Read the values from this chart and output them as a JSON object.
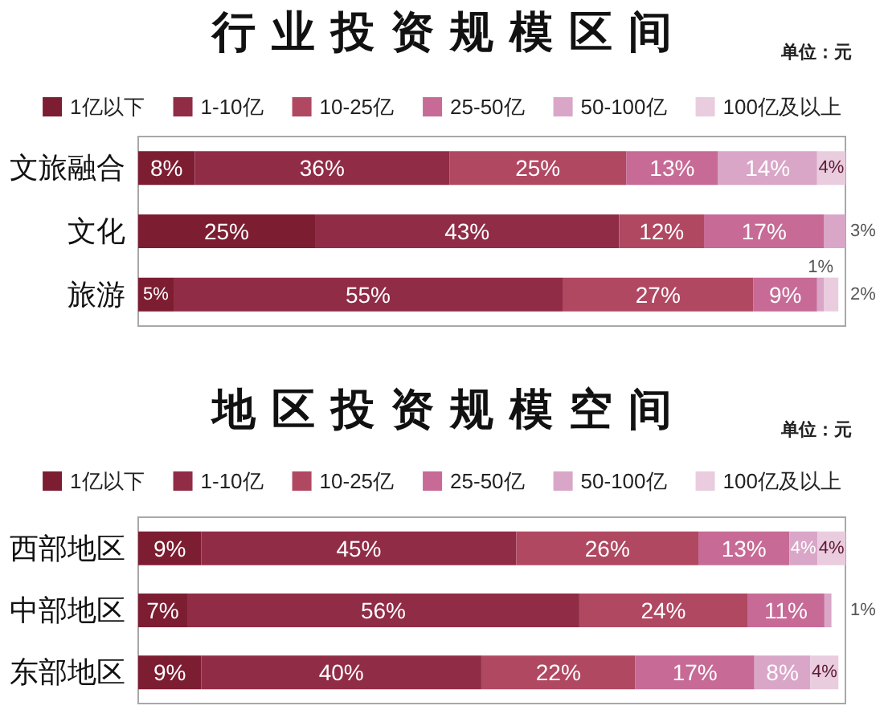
{
  "chart_data": [
    {
      "type": "bar",
      "title": "行业投资规模区间",
      "subtitle": "单位：元",
      "orientation": "horizontal",
      "stacked": true,
      "legend": "top",
      "tick_labels": "y",
      "categories": [
        "文旅融合",
        "文化",
        "旅游"
      ],
      "series": [
        {
          "name": "1亿以下",
          "color": "#7d1d32",
          "values": [
            8,
            25,
            5
          ],
          "value_labels": [
            "8%",
            "25%",
            "5%"
          ]
        },
        {
          "name": "1-10亿",
          "color": "#912c46",
          "values": [
            36,
            43,
            55
          ],
          "value_labels": [
            "36%",
            "43%",
            "55%"
          ]
        },
        {
          "name": "10-25亿",
          "color": "#b04862",
          "values": [
            25,
            12,
            27
          ],
          "value_labels": [
            "25%",
            "12%",
            "27%"
          ]
        },
        {
          "name": "25-50亿",
          "color": "#c76a96",
          "values": [
            13,
            17,
            9
          ],
          "value_labels": [
            "13%",
            "17%",
            "9%"
          ]
        },
        {
          "name": "50-100亿",
          "color": "#d9a6c8",
          "values": [
            14,
            3,
            1
          ],
          "value_labels": [
            "14%",
            "3%",
            "1%"
          ]
        },
        {
          "name": "100亿及以上",
          "color": "#eaccdf",
          "values": [
            4,
            null,
            2
          ],
          "value_labels": [
            "4%",
            null,
            "2%"
          ]
        }
      ]
    },
    {
      "type": "bar",
      "title": "地区投资规模空间",
      "subtitle": "单位：元",
      "orientation": "horizontal",
      "stacked": true,
      "legend": "top",
      "tick_labels": "y",
      "categories": [
        "西部地区",
        "中部地区",
        "东部地区"
      ],
      "series": [
        {
          "name": "1亿以下",
          "color": "#7d1d32",
          "values": [
            9,
            7,
            9
          ],
          "value_labels": [
            "9%",
            "7%",
            "9%"
          ]
        },
        {
          "name": "1-10亿",
          "color": "#912c46",
          "values": [
            45,
            56,
            40
          ],
          "value_labels": [
            "45%",
            "56%",
            "40%"
          ]
        },
        {
          "name": "10-25亿",
          "color": "#b04862",
          "values": [
            26,
            24,
            22
          ],
          "value_labels": [
            "26%",
            "24%",
            "22%"
          ]
        },
        {
          "name": "25-50亿",
          "color": "#c76a96",
          "values": [
            13,
            11,
            17
          ],
          "value_labels": [
            "13%",
            "11%",
            "17%"
          ]
        },
        {
          "name": "50-100亿",
          "color": "#d9a6c8",
          "values": [
            4,
            1,
            8
          ],
          "value_labels": [
            "4%",
            "1%",
            "8%"
          ]
        },
        {
          "name": "100亿及以上",
          "color": "#eaccdf",
          "values": [
            4,
            null,
            4
          ],
          "value_labels": [
            "4%",
            null,
            "4%"
          ]
        }
      ]
    }
  ]
}
